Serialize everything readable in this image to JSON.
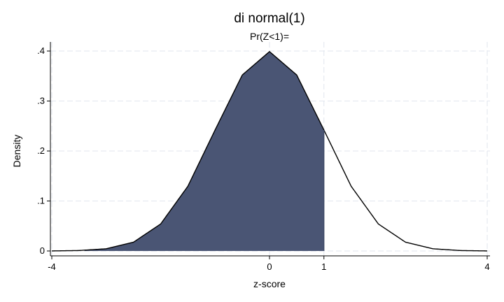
{
  "chart_data": {
    "type": "area",
    "title": "di normal(1)",
    "subtitle": "Pr(Z<1)=",
    "xlabel": "z-score",
    "ylabel": "Density",
    "xlim": [
      -4,
      4
    ],
    "ylim": [
      0,
      0.4
    ],
    "x_ticks": [
      {
        "value": -4,
        "label": "-4"
      },
      {
        "value": 0,
        "label": "0"
      },
      {
        "value": 1,
        "label": "1"
      },
      {
        "value": 4,
        "label": "4"
      }
    ],
    "y_ticks": [
      {
        "value": 0,
        "label": "0"
      },
      {
        "value": 0.1,
        "label": ".1"
      },
      {
        "value": 0.2,
        "label": ".2"
      },
      {
        "value": 0.3,
        "label": ".3"
      },
      {
        "value": 0.4,
        "label": ".4"
      }
    ],
    "grid": true,
    "series": [
      {
        "kind": "density-curve",
        "distribution": "standard normal",
        "x": [
          -4,
          -3.5,
          -3,
          -2.5,
          -2,
          -1.5,
          -1,
          -0.5,
          0,
          0.5,
          1,
          1.5,
          2,
          2.5,
          3,
          3.5,
          4
        ],
        "y": [
          0.0001,
          0.0009,
          0.0044,
          0.0175,
          0.054,
          0.1295,
          0.242,
          0.3521,
          0.3989,
          0.3521,
          0.242,
          0.1295,
          0.054,
          0.0175,
          0.0044,
          0.0009,
          0.0001
        ],
        "color": "#000000"
      },
      {
        "kind": "shaded-area",
        "from": -3.4,
        "to": 1,
        "color": "#4a5574"
      }
    ],
    "reference_line_x": 1
  }
}
